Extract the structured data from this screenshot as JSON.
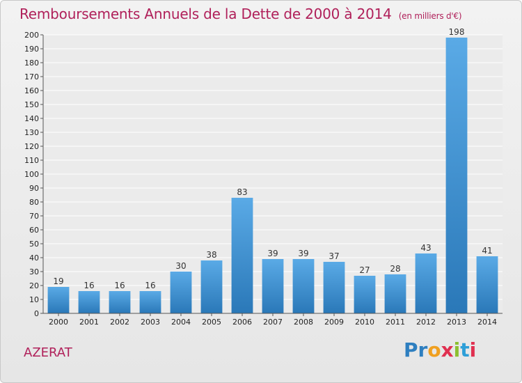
{
  "chart_data": {
    "type": "bar",
    "title": "Remboursements Annuels de la Dette de 2000 à 2014",
    "subtitle": "(en milliers d'€)",
    "categories": [
      "2000",
      "2001",
      "2002",
      "2003",
      "2004",
      "2005",
      "2006",
      "2007",
      "2008",
      "2009",
      "2010",
      "2011",
      "2012",
      "2013",
      "2014"
    ],
    "values": [
      19,
      16,
      16,
      16,
      30,
      38,
      83,
      39,
      39,
      37,
      27,
      28,
      43,
      198,
      41
    ],
    "ylim": [
      0,
      200
    ],
    "ytick_step": 10,
    "grid": true,
    "legend": "none",
    "bar_color_top": "#5aaae6",
    "bar_color_bottom": "#2a78b8"
  },
  "footer": {
    "commune": "AZERAT",
    "logo_letters": [
      {
        "ch": "P",
        "color": "#2e7fc0"
      },
      {
        "ch": "r",
        "color": "#2e7fc0"
      },
      {
        "ch": "o",
        "color": "#f0a020"
      },
      {
        "ch": "x",
        "color": "#e03050"
      },
      {
        "ch": "i",
        "color": "#8cbf30"
      },
      {
        "ch": "t",
        "color": "#2e9fd8"
      },
      {
        "ch": "i",
        "color": "#e03050"
      }
    ]
  },
  "colors": {
    "title": "#b0205a",
    "grid": "#ffffff",
    "background": "#ebebeb"
  }
}
